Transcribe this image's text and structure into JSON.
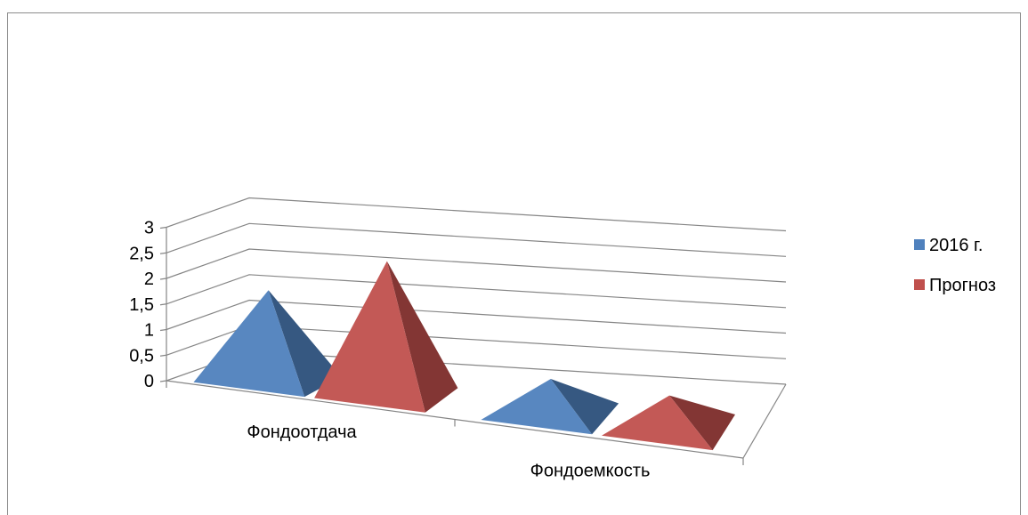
{
  "chart_data": {
    "type": "bar",
    "subtype": "3d-pyramid",
    "categories": [
      "Фондоотдача",
      "Фондоемкость"
    ],
    "series": [
      {
        "name": "2016 г.",
        "values": [
          1.77,
          0.66
        ],
        "color": "#4f81bd"
      },
      {
        "name": "Прогноз",
        "values": [
          2.6,
          0.6
        ],
        "color": "#c0504d"
      }
    ],
    "ylim": [
      0,
      3
    ],
    "yticks": [
      "0",
      "0,5",
      "1",
      "1,5",
      "2",
      "2,5",
      "3"
    ],
    "grid": true,
    "legend_position": "right"
  }
}
